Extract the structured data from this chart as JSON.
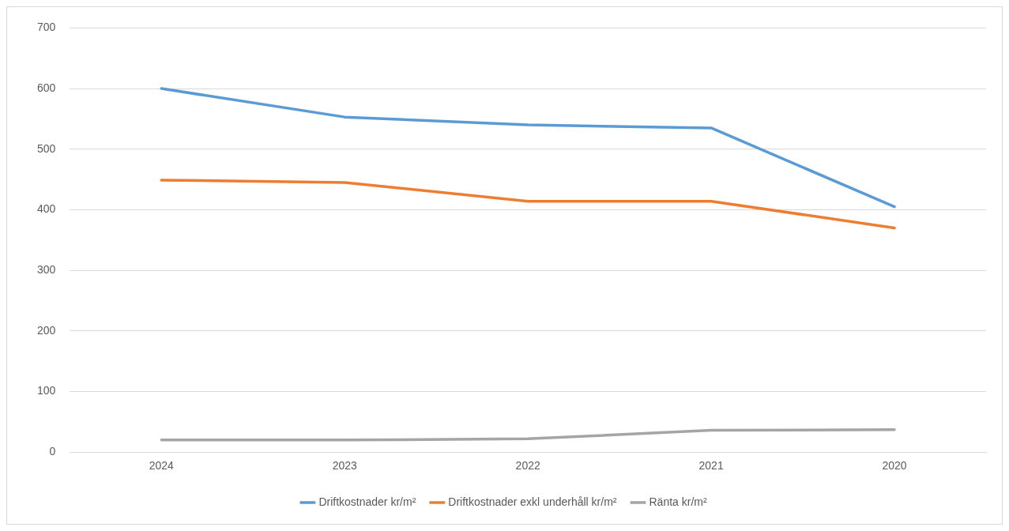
{
  "chart_data": {
    "type": "line",
    "categories": [
      "2024",
      "2023",
      "2022",
      "2021",
      "2020"
    ],
    "series": [
      {
        "name": "Driftkostnader kr/m²",
        "color": "#5b9bd5",
        "values": [
          600,
          553,
          540,
          535,
          405
        ]
      },
      {
        "name": "Driftkostnader exkl underhåll kr/m²",
        "color": "#ed7d31",
        "values": [
          449,
          445,
          414,
          414,
          370
        ]
      },
      {
        "name": "Ränta kr/m²",
        "color": "#a5a5a5",
        "values": [
          20,
          20,
          22,
          36,
          37
        ]
      }
    ],
    "ylim": [
      0,
      700
    ],
    "yticks": [
      0,
      100,
      200,
      300,
      400,
      500,
      600,
      700
    ],
    "grid": "y",
    "legend": "bottom",
    "marker": "none",
    "line_style": "solid"
  }
}
